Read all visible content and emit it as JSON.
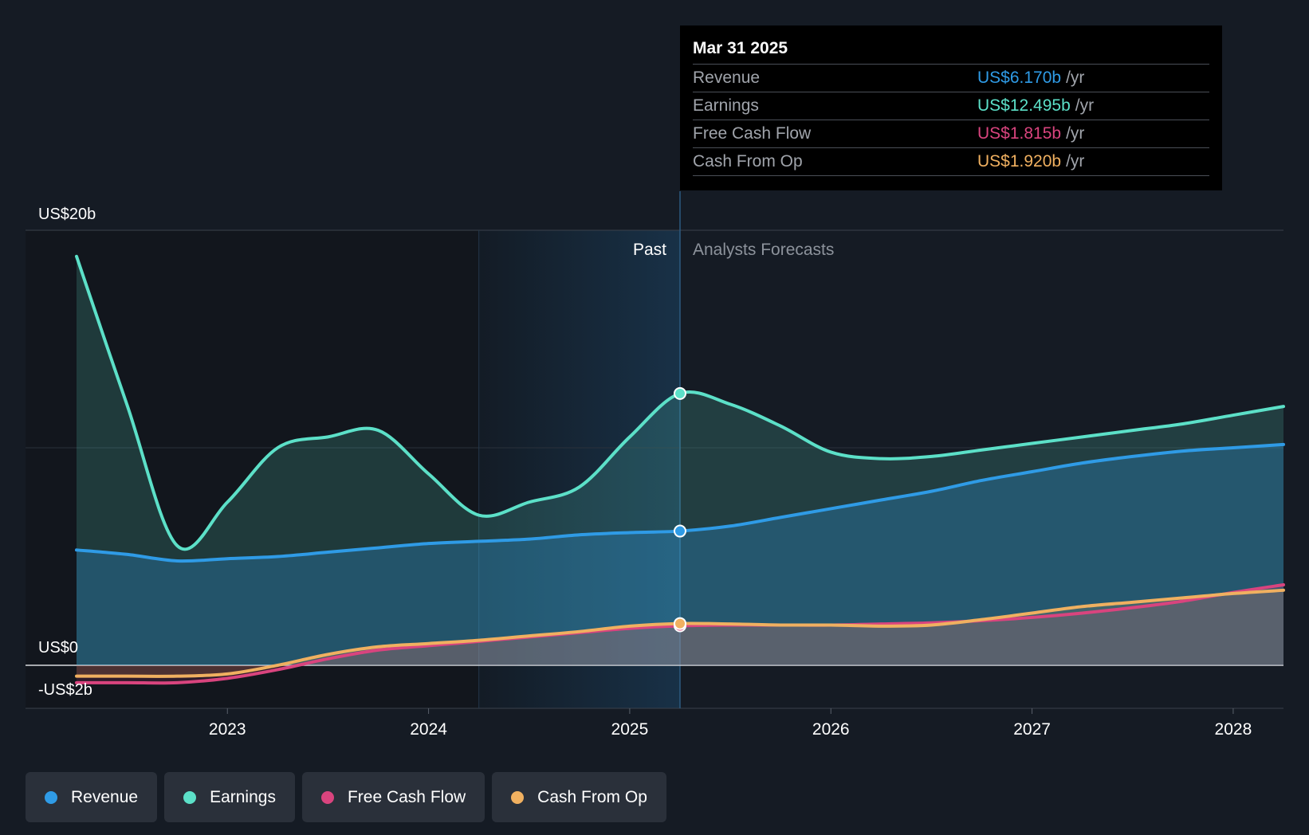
{
  "colors": {
    "background": "#151b24",
    "revenue": "#2f9be6",
    "earnings": "#5ce0c8",
    "free_cash_flow": "#d9447e",
    "cash_from_op": "#f0b060",
    "past_highlight": "#1a3a55"
  },
  "tooltip": {
    "date": "Mar 31 2025",
    "rows": [
      {
        "label": "Revenue",
        "value": "US$6.170b",
        "unit": "/yr",
        "color_key": "revenue"
      },
      {
        "label": "Earnings",
        "value": "US$12.495b",
        "unit": "/yr",
        "color_key": "earnings"
      },
      {
        "label": "Free Cash Flow",
        "value": "US$1.815b",
        "unit": "/yr",
        "color_key": "free_cash_flow"
      },
      {
        "label": "Cash From Op",
        "value": "US$1.920b",
        "unit": "/yr",
        "color_key": "cash_from_op"
      }
    ]
  },
  "legend": [
    {
      "label": "Revenue",
      "color_key": "revenue"
    },
    {
      "label": "Earnings",
      "color_key": "earnings"
    },
    {
      "label": "Free Cash Flow",
      "color_key": "free_cash_flow"
    },
    {
      "label": "Cash From Op",
      "color_key": "cash_from_op"
    }
  ],
  "chart_data": {
    "type": "area",
    "title": "",
    "xlabel": "",
    "ylabel": "",
    "ylim": [
      -2,
      20
    ],
    "xlim": [
      2022.25,
      2028.25
    ],
    "y_tick_labels": [
      {
        "value": 20,
        "label": "US$20b"
      },
      {
        "value": 0,
        "label": "US$0"
      },
      {
        "value": -2,
        "label": "-US$2b"
      }
    ],
    "x_ticks": [
      2023,
      2024,
      2025,
      2026,
      2027,
      2028
    ],
    "x_tick_labels": [
      "2023",
      "2024",
      "2025",
      "2026",
      "2027",
      "2028"
    ],
    "past_label": "Past",
    "forecast_label": "Analysts Forecasts",
    "past_highlight_start": 2024.25,
    "current_date": 2025.25,
    "series": [
      {
        "name": "Revenue",
        "color_key": "revenue",
        "x": [
          2022.25,
          2022.5,
          2022.75,
          2023.0,
          2023.25,
          2023.5,
          2023.75,
          2024.0,
          2024.25,
          2024.5,
          2024.75,
          2025.0,
          2025.25,
          2025.5,
          2025.75,
          2026.0,
          2026.25,
          2026.5,
          2026.75,
          2027.0,
          2027.25,
          2027.5,
          2027.75,
          2028.0,
          2028.25
        ],
        "y": [
          5.3,
          5.1,
          4.8,
          4.9,
          5.0,
          5.2,
          5.4,
          5.6,
          5.7,
          5.8,
          6.0,
          6.1,
          6.17,
          6.4,
          6.8,
          7.2,
          7.6,
          8.0,
          8.5,
          8.9,
          9.3,
          9.6,
          9.85,
          10.0,
          10.15
        ]
      },
      {
        "name": "Earnings",
        "color_key": "earnings",
        "x": [
          2022.25,
          2022.5,
          2022.75,
          2023.0,
          2023.25,
          2023.5,
          2023.75,
          2024.0,
          2024.25,
          2024.5,
          2024.75,
          2025.0,
          2025.25,
          2025.5,
          2025.75,
          2026.0,
          2026.25,
          2026.5,
          2026.75,
          2027.0,
          2027.25,
          2027.5,
          2027.75,
          2028.0,
          2028.25
        ],
        "y": [
          18.8,
          12.0,
          5.5,
          7.5,
          10.0,
          10.5,
          10.8,
          8.8,
          6.9,
          7.5,
          8.2,
          10.5,
          12.495,
          12.0,
          11.0,
          9.8,
          9.5,
          9.6,
          9.9,
          10.2,
          10.5,
          10.8,
          11.1,
          11.5,
          11.9
        ]
      },
      {
        "name": "Free Cash Flow",
        "color_key": "free_cash_flow",
        "x": [
          2022.25,
          2022.5,
          2022.75,
          2023.0,
          2023.25,
          2023.5,
          2023.75,
          2024.0,
          2024.25,
          2024.5,
          2024.75,
          2025.0,
          2025.25,
          2025.5,
          2025.75,
          2026.0,
          2026.25,
          2026.5,
          2026.75,
          2027.0,
          2027.25,
          2027.5,
          2027.75,
          2028.0,
          2028.25
        ],
        "y": [
          -0.8,
          -0.8,
          -0.8,
          -0.6,
          -0.2,
          0.3,
          0.7,
          0.9,
          1.1,
          1.3,
          1.5,
          1.7,
          1.815,
          1.85,
          1.85,
          1.85,
          1.9,
          1.95,
          2.05,
          2.2,
          2.4,
          2.65,
          2.95,
          3.35,
          3.7
        ]
      },
      {
        "name": "Cash From Op",
        "color_key": "cash_from_op",
        "x": [
          2022.25,
          2022.5,
          2022.75,
          2023.0,
          2023.25,
          2023.5,
          2023.75,
          2024.0,
          2024.25,
          2024.5,
          2024.75,
          2025.0,
          2025.25,
          2025.5,
          2025.75,
          2026.0,
          2026.25,
          2026.5,
          2026.75,
          2027.0,
          2027.25,
          2027.5,
          2027.75,
          2028.0,
          2028.25
        ],
        "y": [
          -0.5,
          -0.5,
          -0.5,
          -0.4,
          0.0,
          0.5,
          0.85,
          1.0,
          1.15,
          1.35,
          1.55,
          1.8,
          1.92,
          1.9,
          1.85,
          1.85,
          1.8,
          1.85,
          2.1,
          2.4,
          2.7,
          2.9,
          3.1,
          3.3,
          3.45
        ]
      }
    ]
  }
}
